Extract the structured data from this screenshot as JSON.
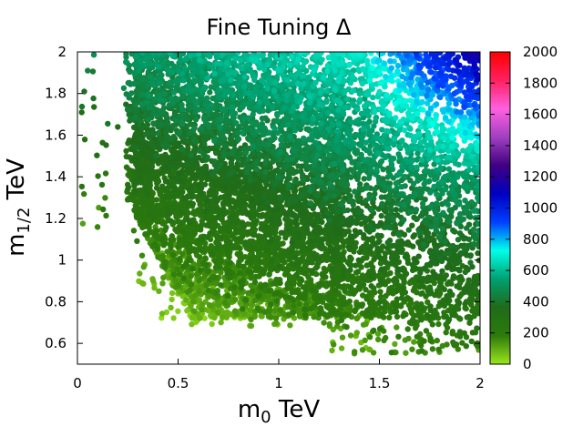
{
  "chart_data": {
    "type": "scatter",
    "title": "Fine Tuning Δ",
    "xlabel": {
      "base": "m",
      "sub": "0",
      "unit": " TeV"
    },
    "ylabel": {
      "base": "m",
      "sub": "1/2",
      "unit": " TeV"
    },
    "xlim": [
      0,
      2
    ],
    "ylim": [
      0.5,
      2.0
    ],
    "x_ticks": [
      "0",
      "0.5",
      "1",
      "1.5",
      "2"
    ],
    "x_tick_values": [
      0,
      0.5,
      1,
      1.5,
      2
    ],
    "y_ticks": [
      "0.6",
      "0.8",
      "1",
      "1.2",
      "1.4",
      "1.6",
      "1.8",
      "2"
    ],
    "y_tick_values": [
      0.6,
      0.8,
      1.0,
      1.2,
      1.4,
      1.6,
      1.8,
      2.0
    ],
    "grid": false,
    "colorbar": {
      "range": [
        0,
        2000
      ],
      "ticks": [
        "0",
        "200",
        "400",
        "600",
        "800",
        "1000",
        "1200",
        "1400",
        "1600",
        "1800",
        "2000"
      ],
      "tick_values": [
        0,
        200,
        400,
        600,
        800,
        1000,
        1200,
        1400,
        1600,
        1800,
        2000
      ],
      "colors": [
        "#9be61c",
        "#2d7b0b",
        "#1f6b1a",
        "#00a070",
        "#00ffe8",
        "#0040ff",
        "#0000c0",
        "#400080",
        "#a040c0",
        "#ff60e0",
        "#ff2060",
        "#ff0000"
      ],
      "placement": "right"
    },
    "point_distribution": {
      "x_min_at_low_y": 0.25,
      "y_min": 0.52,
      "y_max": 2.0,
      "dense_region": {
        "x": [
          0.3,
          1.3
        ],
        "y": [
          0.65,
          2.0
        ]
      },
      "sparse_region": {
        "x": [
          1.3,
          2.0
        ],
        "y": [
          0.5,
          2.0
        ]
      },
      "delta_low_corner": "x≈0.4, y≈0.8: Δ≈100",
      "delta_high_corner": "x≈2.0, y≈2.0: Δ≈1000"
    }
  }
}
